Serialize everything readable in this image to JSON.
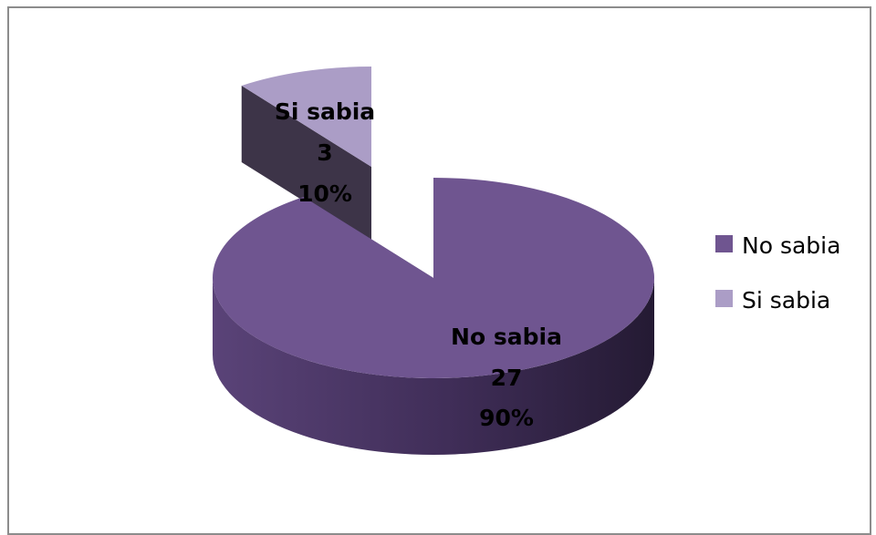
{
  "chart_data": {
    "type": "pie",
    "style": "3d-exploded",
    "series": [
      {
        "name": "",
        "slices": [
          {
            "label": "No sabia",
            "value": 27,
            "percent": "90%",
            "color": "#6f5590",
            "side_color": "#4a3563"
          },
          {
            "label": "Si sabia",
            "value": 3,
            "percent": "10%",
            "color": "#ab9dc6",
            "side_color": "#3d3448"
          }
        ]
      }
    ],
    "legend": {
      "position": "right",
      "entries": [
        "No sabia",
        "Si sabia"
      ]
    },
    "title": ""
  }
}
